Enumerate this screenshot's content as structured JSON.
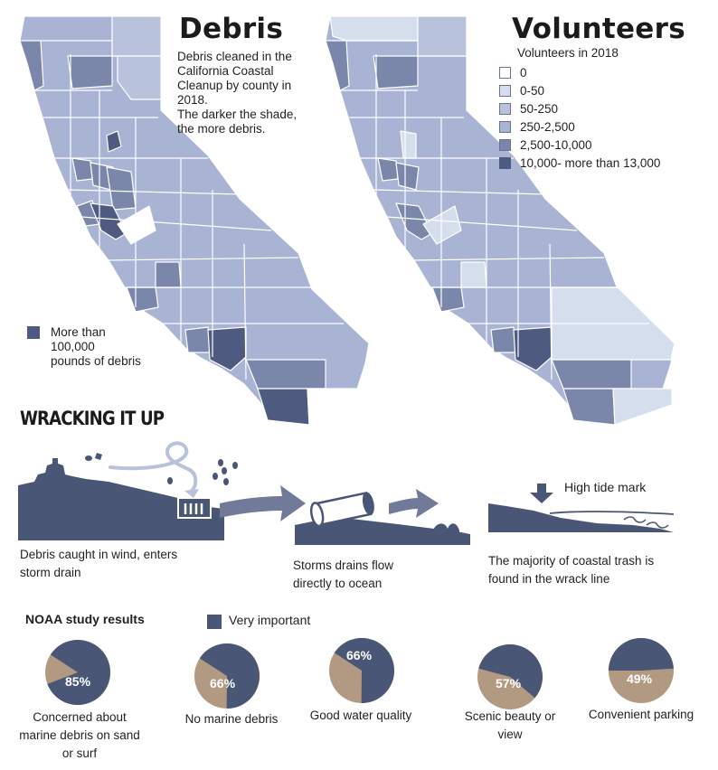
{
  "colors": {
    "level0": "#ffffff",
    "level1": "#d5deec",
    "level2": "#b8c2dc",
    "level3": "#a9b3d3",
    "level4": "#7b86ab",
    "level5": "#4e5a7f",
    "navy": "#4a5675",
    "tan": "#b29a82",
    "arrow": "#727a99"
  },
  "debris_map": {
    "title": "Debris",
    "description": [
      "Debris cleaned in the",
      "California Coastal",
      "Cleanup by county in",
      "2018.",
      "The darker the shade,",
      "the more debris."
    ],
    "legend_label": [
      "More than",
      "100,000",
      "pounds of debris"
    ]
  },
  "volunteers_map": {
    "title": "Volunteers",
    "legend_title": "Volunteers in 2018",
    "legend": [
      {
        "label": "0",
        "level": "level0"
      },
      {
        "label": "0-50",
        "level": "level1"
      },
      {
        "label": "50-250",
        "level": "level2"
      },
      {
        "label": "250-2,500",
        "level": "level3"
      },
      {
        "label": "2,500-10,000",
        "level": "level4"
      },
      {
        "label": "10,000- more than 13,000",
        "level": "level5"
      }
    ]
  },
  "wracking": {
    "title": "WRACKING IT UP",
    "step1": [
      "Debris caught in wind, enters",
      "storm drain"
    ],
    "step2": [
      "Storms drains flow",
      "directly to ocean"
    ],
    "step3": [
      "The majority of coastal trash is",
      "found in the wrack line"
    ],
    "high_tide_label": "High tide mark"
  },
  "noaa": {
    "title": "NOAA study results",
    "legend_label": "Very important",
    "results": [
      {
        "pct": "85%",
        "value": 85,
        "caption": [
          "Concerned about",
          "marine debris on sand",
          "or surf"
        ]
      },
      {
        "pct": "66%",
        "value": 66,
        "caption": [
          "No marine debris"
        ]
      },
      {
        "pct": "66%",
        "value": 66,
        "caption": [
          "Good water quality"
        ]
      },
      {
        "pct": "57%",
        "value": 57,
        "caption": [
          "Scenic beauty or",
          "view"
        ]
      },
      {
        "pct": "49%",
        "value": 49,
        "caption": [
          "Convenient parking"
        ]
      }
    ]
  }
}
